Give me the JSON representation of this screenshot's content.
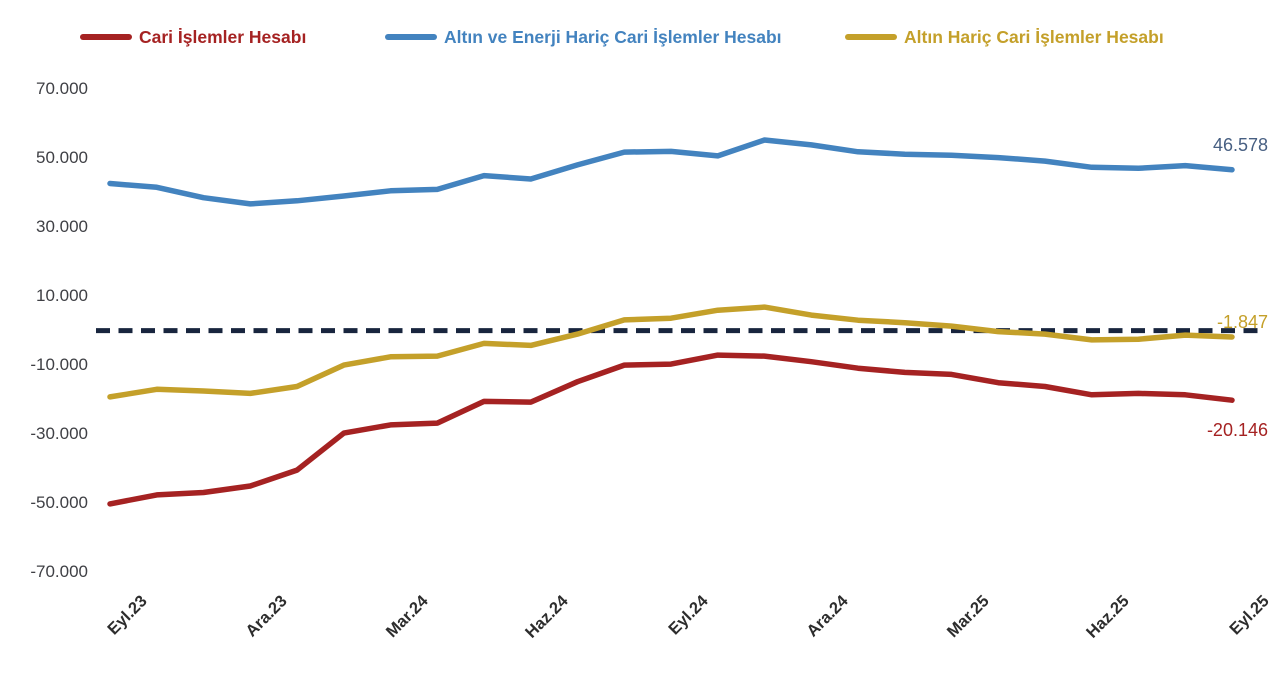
{
  "chart_data": {
    "type": "line",
    "title": "",
    "xlabel": "",
    "ylabel": "",
    "grid": false,
    "background": "#FFFFFF",
    "legend_position": "top",
    "x": [
      "Eyl.23",
      "Eki.23",
      "Kas.23",
      "Ara.23",
      "Oca.24",
      "Şub.24",
      "Mar.24",
      "Nis.24",
      "May.24",
      "Haz.24",
      "Tem.24",
      "Ağu.24",
      "Eyl.24",
      "Eki.24",
      "Kas.24",
      "Ara.24",
      "Oca.25",
      "Şub.25",
      "Mar.25",
      "Nis.25",
      "May.25",
      "Haz.25",
      "Tem.25",
      "Ağu.25",
      "Eyl.25"
    ],
    "x_tick_shown_every": 3,
    "x_tick_labels": [
      "Eyl.23",
      "Ara.23",
      "Mar.24",
      "Haz.24",
      "Eyl.24",
      "Ara.24",
      "Mar.25",
      "Haz.25",
      "Eyl.25"
    ],
    "ylim": [
      -78000,
      78000
    ],
    "y_ticks": [
      {
        "label": "70.000",
        "value": 70000
      },
      {
        "label": "50.000",
        "value": 50000
      },
      {
        "label": "30.000",
        "value": 30000
      },
      {
        "label": "10.000",
        "value": 10000
      },
      {
        "label": "-10.000",
        "value": -10000
      },
      {
        "label": "-30.000",
        "value": -30000
      },
      {
        "label": "-50.000",
        "value": -50000
      },
      {
        "label": "-70.000",
        "value": -70000
      }
    ],
    "zero_line": {
      "value": 0,
      "style": "dashed",
      "color": "#18253E"
    },
    "series": [
      {
        "name": "Cari İşlemler Hesabı",
        "color": "#A52222",
        "end_label": "-20.146",
        "end_label_color": "#A52222",
        "values": [
          -50200,
          -47600,
          -46900,
          -45000,
          -40400,
          -29700,
          -27300,
          -26800,
          -20500,
          -20700,
          -14800,
          -10000,
          -9700,
          -7100,
          -7400,
          -9000,
          -10900,
          -12100,
          -12700,
          -15100,
          -16200,
          -18600,
          -18200,
          -18600,
          -20146
        ]
      },
      {
        "name": "Altın ve Enerji Hariç Cari İşlemler Hesabı",
        "color": "#4383BF",
        "end_label": "46.578",
        "end_label_color": "#475F82",
        "values": [
          42600,
          41500,
          38500,
          36700,
          37600,
          39000,
          40500,
          40900,
          44900,
          43900,
          48000,
          51700,
          51900,
          50600,
          55200,
          53800,
          51800,
          51100,
          50800,
          50100,
          49100,
          47300,
          47000,
          47800,
          46578
        ]
      },
      {
        "name": "Altın Hariç Cari İşlemler Hesabı",
        "color": "#C4A02A",
        "end_label": "-1.847",
        "end_label_color": "#C4A02A",
        "values": [
          -19200,
          -17000,
          -17500,
          -18200,
          -16200,
          -10000,
          -7600,
          -7400,
          -3700,
          -4300,
          -1000,
          3100,
          3600,
          5900,
          6800,
          4500,
          3000,
          2300,
          1300,
          -300,
          -1000,
          -2700,
          -2500,
          -1300,
          -1847
        ]
      }
    ]
  },
  "legend": {
    "items": [
      {
        "label": "Cari İşlemler Hesabı",
        "color": "#A52222"
      },
      {
        "label": "Altın ve Enerji Hariç Cari İşlemler Hesabı",
        "color": "#4383BF"
      },
      {
        "label": "Altın Hariç Cari İşlemler Hesabı",
        "color": "#C4A02A"
      }
    ]
  }
}
